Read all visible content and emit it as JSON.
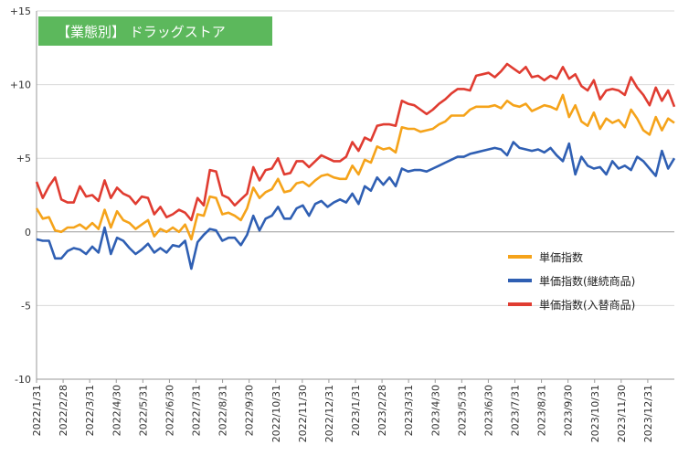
{
  "chart_data": {
    "type": "line",
    "title": "【業態別】 ドラッグストア",
    "xlabel": "",
    "ylabel": "",
    "ylim": [
      -10,
      15
    ],
    "yticks": [
      15,
      10,
      5,
      0,
      -5,
      -10
    ],
    "ytick_labels": [
      "+15",
      "+10",
      "+5",
      "0",
      "-5",
      "-10"
    ],
    "x_tick_labels": [
      "2022/1/31",
      "2022/2/28",
      "2022/3/31",
      "2022/4/30",
      "2022/5/31",
      "2022/6/30",
      "2022/7/31",
      "2022/8/31",
      "2022/9/30",
      "2022/10/31",
      "2022/11/30",
      "2022/12/31",
      "2023/1/31",
      "2023/2/28",
      "2023/3/31",
      "2023/4/30",
      "2023/5/31",
      "2023/6/30",
      "2023/7/31",
      "2023/8/31",
      "2023/9/30",
      "2023/10/31",
      "2023/11/30",
      "2023/12/31"
    ],
    "grid": "horizontal",
    "legend_position": "right-center",
    "series": [
      {
        "name": "単価指数",
        "color": "#f5a31a",
        "values": [
          1.6,
          0.9,
          1.0,
          0.1,
          0.0,
          0.3,
          0.3,
          0.5,
          0.2,
          0.6,
          0.2,
          1.5,
          0.3,
          1.4,
          0.8,
          0.6,
          0.2,
          0.5,
          0.8,
          -0.3,
          0.2,
          0.0,
          0.3,
          0.0,
          0.5,
          -0.5,
          1.2,
          1.1,
          2.4,
          2.3,
          1.2,
          1.3,
          1.1,
          0.8,
          1.6,
          3.0,
          2.3,
          2.7,
          2.9,
          3.6,
          2.7,
          2.8,
          3.3,
          3.4,
          3.1,
          3.5,
          3.8,
          3.9,
          3.7,
          3.6,
          3.6,
          4.5,
          3.9,
          4.9,
          4.7,
          5.8,
          5.6,
          5.7,
          5.4,
          7.1,
          7.0,
          7.0,
          6.8,
          6.9,
          7.0,
          7.3,
          7.5,
          7.9,
          7.9,
          7.9,
          8.3,
          8.5,
          8.5,
          8.5,
          8.6,
          8.4,
          8.9,
          8.6,
          8.5,
          8.7,
          8.2,
          8.4,
          8.6,
          8.5,
          8.3,
          9.3,
          7.8,
          8.6,
          7.5,
          7.2,
          8.1,
          7.0,
          7.7,
          7.4,
          7.6,
          7.1,
          8.3,
          7.7,
          6.9,
          6.6,
          7.8,
          6.9,
          7.7,
          7.4
        ]
      },
      {
        "name": "単価指数(継続商品)",
        "color": "#2f5fb3",
        "values": [
          -0.5,
          -0.6,
          -0.6,
          -1.8,
          -1.8,
          -1.3,
          -1.1,
          -1.2,
          -1.5,
          -1.0,
          -1.4,
          0.3,
          -1.5,
          -0.4,
          -0.6,
          -1.1,
          -1.5,
          -1.2,
          -0.8,
          -1.4,
          -1.1,
          -1.4,
          -0.9,
          -1.0,
          -0.6,
          -2.5,
          -0.7,
          -0.2,
          0.2,
          0.1,
          -0.6,
          -0.4,
          -0.4,
          -0.9,
          -0.2,
          1.1,
          0.1,
          0.9,
          1.1,
          1.7,
          0.9,
          0.9,
          1.6,
          1.8,
          1.1,
          1.9,
          2.1,
          1.7,
          2.0,
          2.2,
          2.0,
          2.6,
          1.9,
          3.1,
          2.8,
          3.7,
          3.2,
          3.7,
          3.1,
          4.3,
          4.1,
          4.2,
          4.2,
          4.1,
          4.3,
          4.5,
          4.7,
          4.9,
          5.1,
          5.1,
          5.3,
          5.4,
          5.5,
          5.6,
          5.7,
          5.6,
          5.2,
          6.1,
          5.7,
          5.6,
          5.5,
          5.6,
          5.4,
          5.7,
          5.2,
          4.8,
          6.0,
          3.9,
          5.1,
          4.5,
          4.3,
          4.4,
          3.9,
          4.8,
          4.3,
          4.5,
          4.2,
          5.1,
          4.8,
          4.3,
          3.8,
          5.5,
          4.3,
          5.0
        ]
      },
      {
        "name": "単価指数(入替商品)",
        "color": "#e03c31",
        "values": [
          3.4,
          2.3,
          3.1,
          3.7,
          2.2,
          2.0,
          2.0,
          3.1,
          2.4,
          2.5,
          2.1,
          3.5,
          2.3,
          3.0,
          2.6,
          2.4,
          1.9,
          2.4,
          2.3,
          1.2,
          1.7,
          1.0,
          1.2,
          1.5,
          1.3,
          0.8,
          2.3,
          1.8,
          4.2,
          4.1,
          2.5,
          2.3,
          1.8,
          2.2,
          2.6,
          4.4,
          3.5,
          4.2,
          4.3,
          5.0,
          3.9,
          4.0,
          4.8,
          4.8,
          4.4,
          4.8,
          5.2,
          5.0,
          4.8,
          4.8,
          5.1,
          6.1,
          5.5,
          6.4,
          6.2,
          7.2,
          7.3,
          7.3,
          7.2,
          8.9,
          8.7,
          8.6,
          8.3,
          8.0,
          8.3,
          8.7,
          9.0,
          9.4,
          9.7,
          9.7,
          9.6,
          10.6,
          10.7,
          10.8,
          10.5,
          10.9,
          11.4,
          11.1,
          10.8,
          11.2,
          10.5,
          10.6,
          10.3,
          10.6,
          10.4,
          11.2,
          10.4,
          10.7,
          9.9,
          9.6,
          10.3,
          9.0,
          9.6,
          9.7,
          9.6,
          9.3,
          10.5,
          9.8,
          9.3,
          8.6,
          9.8,
          8.9,
          9.6,
          8.5
        ]
      }
    ]
  }
}
